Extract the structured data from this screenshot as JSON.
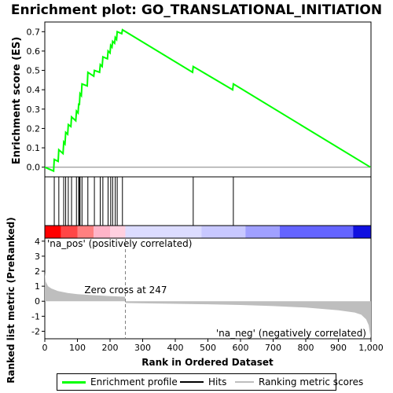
{
  "title": "Enrichment plot: GO_TRANSLATIONAL_INITIATION",
  "colors": {
    "es_line": "#00ff00",
    "hits": "#000000",
    "metric_fill": "#bebebe",
    "pos_text": "#ff0000",
    "neg_text": "#0000ff",
    "zero_line": "#808080"
  },
  "chart_data": [
    {
      "type": "line",
      "name": "enrichment-score",
      "ylabel": "Enrichment score (ES)",
      "xlim": [
        0,
        1000
      ],
      "ylim": [
        -0.05,
        0.75
      ],
      "yticks": [
        "0.0",
        "0.1",
        "0.2",
        "0.3",
        "0.4",
        "0.5",
        "0.6",
        "0.7"
      ],
      "ytick_values": [
        0,
        0.1,
        0.2,
        0.3,
        0.4,
        0.5,
        0.6,
        0.7
      ],
      "grid": false,
      "x": [
        0,
        27,
        29,
        41,
        43,
        56,
        58,
        62,
        64,
        70,
        72,
        80,
        82,
        95,
        97,
        102,
        104,
        106,
        108,
        112,
        114,
        130,
        132,
        150,
        152,
        168,
        170,
        176,
        178,
        192,
        194,
        200,
        202,
        206,
        208,
        214,
        216,
        220,
        222,
        236,
        238,
        453,
        455,
        576,
        578,
        998
      ],
      "values": [
        0.0,
        -0.02,
        0.04,
        0.03,
        0.09,
        0.07,
        0.13,
        0.12,
        0.18,
        0.17,
        0.22,
        0.21,
        0.26,
        0.24,
        0.29,
        0.28,
        0.33,
        0.32,
        0.38,
        0.37,
        0.43,
        0.42,
        0.49,
        0.47,
        0.5,
        0.49,
        0.53,
        0.52,
        0.57,
        0.56,
        0.6,
        0.59,
        0.63,
        0.62,
        0.65,
        0.64,
        0.67,
        0.66,
        0.7,
        0.69,
        0.71,
        0.49,
        0.52,
        0.4,
        0.43,
        0.0
      ]
    },
    {
      "type": "scatter",
      "name": "hits",
      "hit_positions": [
        29,
        43,
        58,
        64,
        72,
        82,
        97,
        104,
        106,
        108,
        114,
        132,
        152,
        170,
        178,
        194,
        202,
        208,
        216,
        222,
        238,
        455,
        578
      ]
    },
    {
      "type": "area",
      "name": "ranked-list-metric",
      "ylabel": "Ranked list metric (PreRanked)",
      "xlabel": "Rank in Ordered Dataset",
      "xlim": [
        0,
        1000
      ],
      "ylim": [
        -2.5,
        4.2
      ],
      "yticks": [
        "-2",
        "-1",
        "0",
        "1",
        "2",
        "3",
        "4"
      ],
      "ytick_values": [
        -2,
        -1,
        0,
        1,
        2,
        3,
        4
      ],
      "xticks": [
        "0",
        "100",
        "200",
        "300",
        "400",
        "500",
        "600",
        "700",
        "800",
        "900",
        "1,000"
      ],
      "xtick_values": [
        0,
        100,
        200,
        300,
        400,
        500,
        600,
        700,
        800,
        900,
        1000
      ],
      "x": [
        0,
        3,
        10,
        20,
        40,
        70,
        100,
        150,
        200,
        246,
        247,
        300,
        400,
        500,
        600,
        700,
        800,
        900,
        950,
        970,
        985,
        993,
        998,
        1000
      ],
      "values": [
        1.9,
        1.3,
        1.0,
        0.85,
        0.68,
        0.55,
        0.47,
        0.4,
        0.34,
        0.3,
        -0.12,
        -0.14,
        -0.17,
        -0.2,
        -0.25,
        -0.32,
        -0.42,
        -0.6,
        -0.75,
        -0.9,
        -1.2,
        -1.6,
        -2.3,
        -2.4
      ],
      "zero_cross_label": "Zero cross at 247",
      "zero_cross": 247,
      "pos_label": "'na_pos' (positively correlated)",
      "neg_label": "'na_neg' (negatively correlated)"
    }
  ],
  "heat_bar": {
    "segments": [
      {
        "from": 0,
        "to": 50,
        "color": "#ff0000"
      },
      {
        "from": 50,
        "to": 100,
        "color": "#ff4646"
      },
      {
        "from": 100,
        "to": 150,
        "color": "#ff8080"
      },
      {
        "from": 150,
        "to": 200,
        "color": "#ffb4c8"
      },
      {
        "from": 200,
        "to": 247,
        "color": "#ffd0e0"
      },
      {
        "from": 247,
        "to": 480,
        "color": "#dcdcff"
      },
      {
        "from": 480,
        "to": 615,
        "color": "#c8c8ff"
      },
      {
        "from": 615,
        "to": 720,
        "color": "#a0a0ff"
      },
      {
        "from": 720,
        "to": 945,
        "color": "#6464ff"
      },
      {
        "from": 945,
        "to": 1000,
        "color": "#1010e0"
      }
    ]
  },
  "legend": {
    "items": [
      {
        "label": "Enrichment profile",
        "color": "#00ff00"
      },
      {
        "label": "Hits",
        "color": "#000000"
      },
      {
        "label": "Ranking metric scores",
        "color": "#bebebe"
      }
    ]
  }
}
